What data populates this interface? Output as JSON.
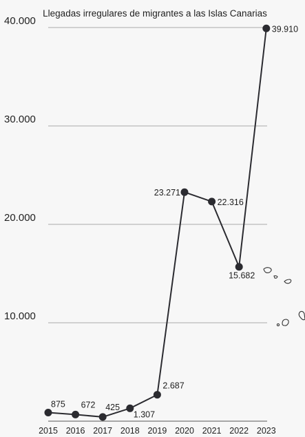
{
  "chart_data": {
    "type": "line",
    "title": "Llegadas irregulares de migrantes a las Islas Canarias",
    "xlabel": "",
    "ylabel": "",
    "x": [
      "2015",
      "2016",
      "2017",
      "2018",
      "2019",
      "2020",
      "2021",
      "2022",
      "2023"
    ],
    "values": [
      875,
      672,
      425,
      1307,
      2687,
      23271,
      22316,
      15682,
      39910
    ],
    "data_labels": [
      "875",
      "672",
      "425",
      "1.307",
      "2.687",
      "23.271",
      "22.316",
      "15.682",
      "39.910"
    ],
    "ylim": [
      0,
      40000
    ],
    "yticks": [
      {
        "value": 10000,
        "label": "10.000"
      },
      {
        "value": 20000,
        "label": "20.000"
      },
      {
        "value": 30000,
        "label": "30.000"
      },
      {
        "value": 40000,
        "label": "40.000"
      }
    ],
    "grid": true,
    "colors": {
      "line": "#2b2b30",
      "grid": "#a9a9a9",
      "background": "#f7f7f7"
    },
    "decoration": "canary-islands-outline"
  }
}
